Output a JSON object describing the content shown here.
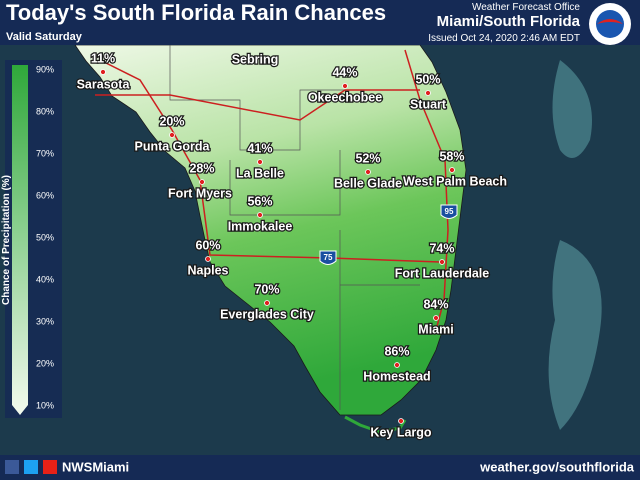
{
  "header": {
    "title": "Today's South Florida Rain Chances",
    "valid": "Valid Saturday",
    "office_line1": "Weather Forecast Office",
    "office_line2": "Miami/South Florida",
    "issued": "Issued Oct 24, 2020 2:46 AM EDT"
  },
  "legend": {
    "title": "Chance of Precipitation (%)",
    "labels": [
      "90%",
      "80%",
      "70%",
      "60%",
      "50%",
      "40%",
      "30%",
      "20%",
      "10%"
    ]
  },
  "cities": [
    {
      "name": "Sarasota",
      "chance": "11%"
    },
    {
      "name": "Sebring"
    },
    {
      "name": "Okeechobee",
      "chance": "44%"
    },
    {
      "name": "Stuart",
      "chance": "50%"
    },
    {
      "name": "Punta Gorda",
      "chance": "20%"
    },
    {
      "name": "La Belle",
      "chance": "41%"
    },
    {
      "name": "Belle Glade",
      "chance": "52%"
    },
    {
      "name": "West Palm Beach",
      "chance": "58%"
    },
    {
      "name": "Fort Myers",
      "chance": "28%"
    },
    {
      "name": "Immokalee",
      "chance": "56%"
    },
    {
      "name": "Naples",
      "chance": "60%"
    },
    {
      "name": "Fort Lauderdale",
      "chance": "74%"
    },
    {
      "name": "Everglades City",
      "chance": "70%"
    },
    {
      "name": "Miami",
      "chance": "84%"
    },
    {
      "name": "Homestead",
      "chance": "86%"
    },
    {
      "name": "Key Largo"
    }
  ],
  "shields": [
    "95",
    "75"
  ],
  "footer": {
    "handle": "NWSMiami",
    "url": "weather.gov/southflorida"
  }
}
